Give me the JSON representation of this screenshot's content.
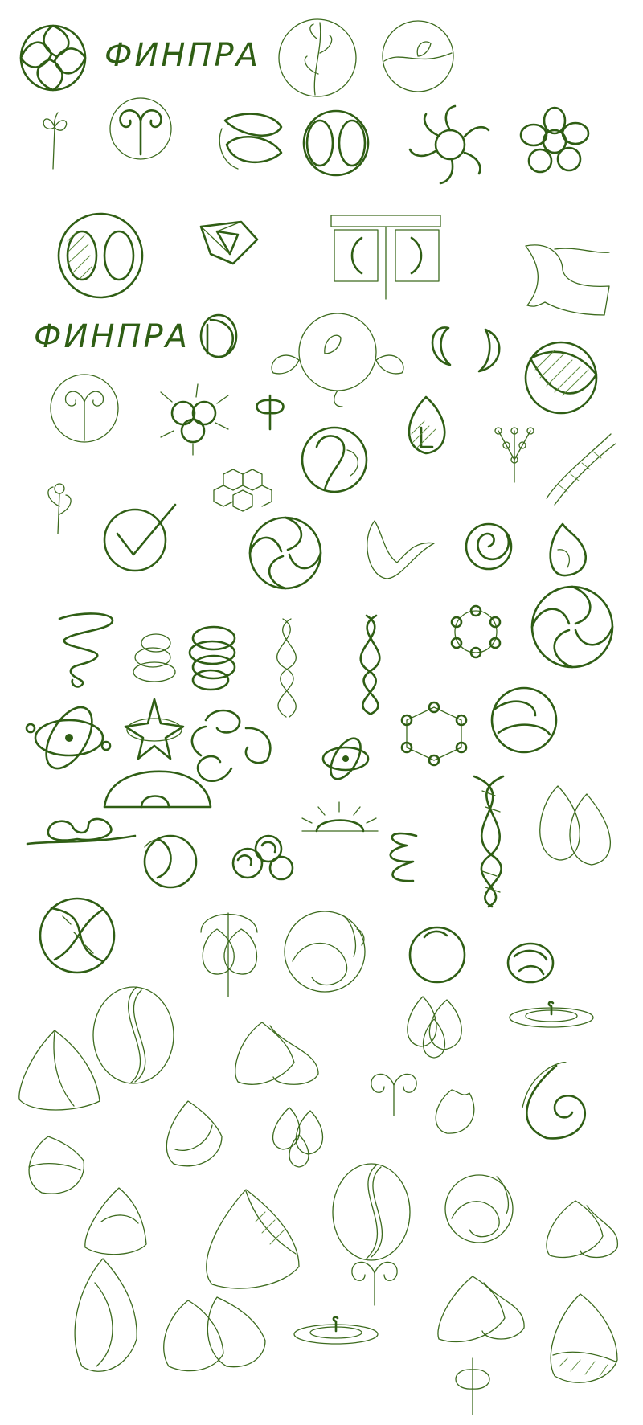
{
  "sheet": {
    "wordmark_1": "ФИНПРА",
    "wordmark_2": "ФИНПРА"
  },
  "colors": {
    "ink": "#2f5e14",
    "background": "#ffffff"
  }
}
